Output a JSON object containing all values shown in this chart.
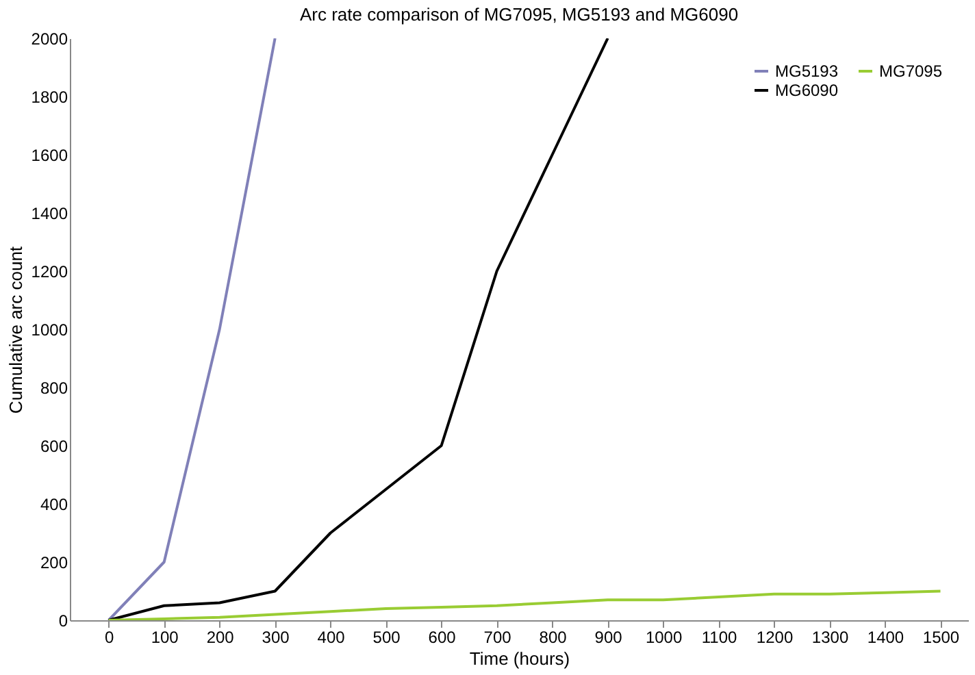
{
  "chart_data": {
    "type": "line",
    "title": "Arc rate comparison of MG7095, MG5193 and MG6090",
    "xlabel": "Time (hours)",
    "ylabel": "Cumulative arc count",
    "x": [
      0,
      100,
      200,
      300,
      400,
      500,
      600,
      700,
      800,
      900,
      1000,
      1100,
      1200,
      1300,
      1400,
      1500
    ],
    "series": [
      {
        "name": "MG5193",
        "color": "#8080b8",
        "x": [
          0,
          100,
          200,
          300
        ],
        "values": [
          0,
          200,
          1000,
          2000
        ]
      },
      {
        "name": "MG6090",
        "color": "#000000",
        "x": [
          0,
          100,
          200,
          300,
          400,
          500,
          600,
          700,
          800,
          900
        ],
        "values": [
          0,
          50,
          60,
          100,
          300,
          450,
          600,
          1200,
          1600,
          2000
        ]
      },
      {
        "name": "MG7095",
        "color": "#99cc33",
        "values": [
          0,
          5,
          10,
          20,
          30,
          40,
          45,
          50,
          60,
          70,
          70,
          80,
          90,
          90,
          95,
          100
        ]
      }
    ],
    "xlim": [
      -70,
      1550
    ],
    "xticks": [
      0,
      100,
      200,
      300,
      400,
      500,
      600,
      700,
      800,
      900,
      1000,
      1100,
      1200,
      1300,
      1400,
      1500
    ],
    "ylim": [
      0,
      2000
    ],
    "yticks": [
      0,
      200,
      400,
      600,
      800,
      1000,
      1200,
      1400,
      1600,
      1800,
      2000
    ],
    "grid": false,
    "legend": "top right",
    "marker": "none",
    "line_style": "solid"
  }
}
